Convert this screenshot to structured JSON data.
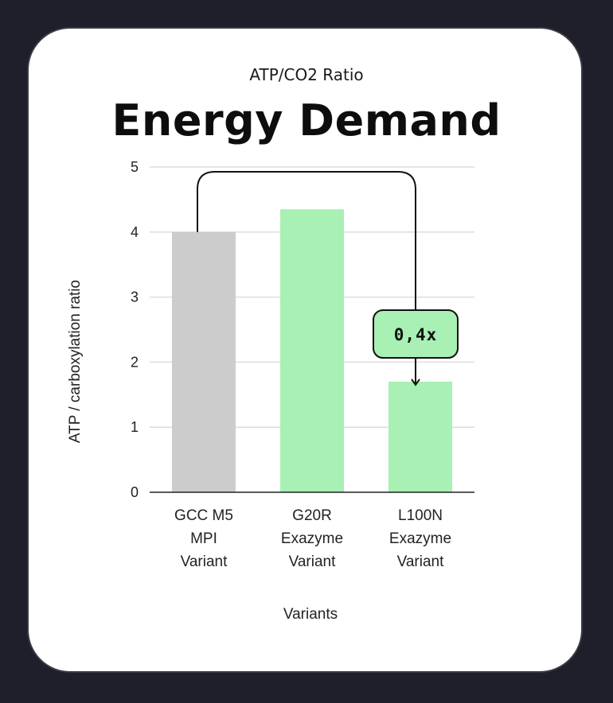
{
  "subtitle": "ATP/CO2 Ratio",
  "title": "Energy Demand",
  "callout": {
    "label": "0,4x"
  },
  "chart_data": {
    "type": "bar",
    "categories": [
      [
        "GCC M5",
        "MPI",
        "Variant"
      ],
      [
        "G20R",
        "Exazyme",
        "Variant"
      ],
      [
        "L100N",
        "Exazyme",
        "Variant"
      ]
    ],
    "values": [
      4.0,
      4.35,
      1.7
    ],
    "colors": [
      "#cccccc",
      "#a8f0b4",
      "#a8f0b4"
    ],
    "xlabel": "Variants",
    "ylabel": "ATP / carboxylation ratio",
    "ylim": [
      0,
      5
    ],
    "yticks": [
      0,
      1,
      2,
      3,
      4,
      5
    ],
    "grid": true,
    "annotation": {
      "from": "GCC M5 MPI Variant",
      "to": "L100N Exazyme Variant",
      "label": "0,4x",
      "fill": "#a8f0b4"
    }
  }
}
